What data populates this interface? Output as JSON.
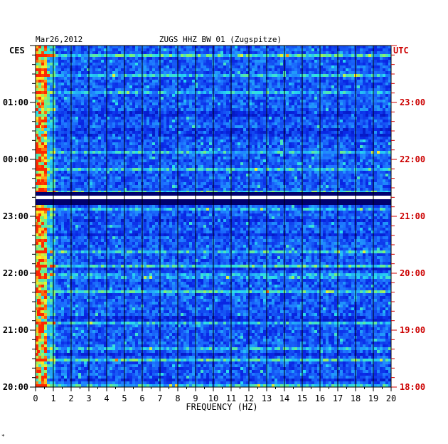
{
  "chart_data": {
    "type": "heatmap",
    "date": "Mar26,2012",
    "title": "ZUGS HHZ BW 01 (Zugspitze)",
    "left_axis_label": "CES",
    "right_axis_label": "UTC",
    "xlabel": "FREQUENCY (HZ)",
    "x_ticks": [
      "0",
      "1",
      "2",
      "3",
      "4",
      "5",
      "6",
      "7",
      "8",
      "9",
      "10",
      "11",
      "12",
      "13",
      "14",
      "15",
      "16",
      "17",
      "18",
      "19",
      "20"
    ],
    "xlim": [
      0,
      20
    ],
    "left_time_ticks": [
      "01:00",
      "00:00",
      "23:00",
      "22:00",
      "21:00",
      "20:00"
    ],
    "right_time_ticks": [
      "23:00",
      "22:00",
      "21:00",
      "20:00",
      "19:00",
      "18:00"
    ],
    "hours_span": 6,
    "gap_position_hours_from_top": 2.65,
    "footer_mark": "*",
    "colors": {
      "background_cell": "#0a1ec8",
      "gap": "#00006e",
      "low_freq_peak": "#ff2200",
      "right_axis_text": "#cc0000"
    }
  }
}
